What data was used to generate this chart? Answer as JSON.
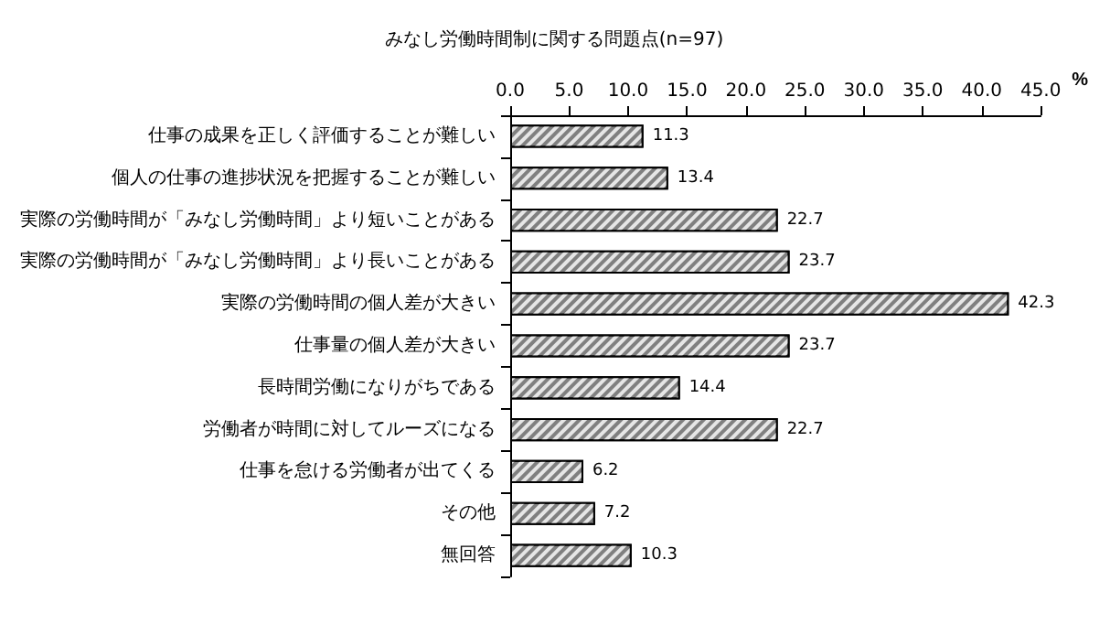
{
  "chart_data": {
    "type": "bar",
    "orientation": "horizontal",
    "title": "みなし労働時間制に関する問題点(n=97)",
    "xlabel": "%",
    "categories": [
      "仕事の成果を正しく評価することが難しい",
      "個人の仕事の進捗状況を把握することが難しい",
      "実際の労働時間が「みなし労働時間」より短いことがある",
      "実際の労働時間が「みなし労働時間」より長いことがある",
      "実際の労働時間の個人差が大きい",
      "仕事量の個人差が大きい",
      "長時間労働になりがちである",
      "労働者が時間に対してルーズになる",
      "仕事を怠ける労働者が出てくる",
      "その他",
      "無回答"
    ],
    "values": [
      11.3,
      13.4,
      22.7,
      23.7,
      42.3,
      23.7,
      14.4,
      22.7,
      6.2,
      7.2,
      10.3
    ],
    "color": "#808080",
    "data_labels": true,
    "grid": false,
    "xlim": [
      0,
      45
    ],
    "xticks": [
      {
        "value": 0,
        "label": "0.0"
      },
      {
        "value": 5,
        "label": "5.0"
      },
      {
        "value": 10,
        "label": "10.0"
      },
      {
        "value": 15,
        "label": "15.0"
      },
      {
        "value": 20,
        "label": "20.0"
      },
      {
        "value": 25,
        "label": "25.0"
      },
      {
        "value": 30,
        "label": "30.0"
      },
      {
        "value": 35,
        "label": "35.0"
      },
      {
        "value": 40,
        "label": "40.0"
      },
      {
        "value": 45,
        "label": "45.0"
      }
    ]
  }
}
